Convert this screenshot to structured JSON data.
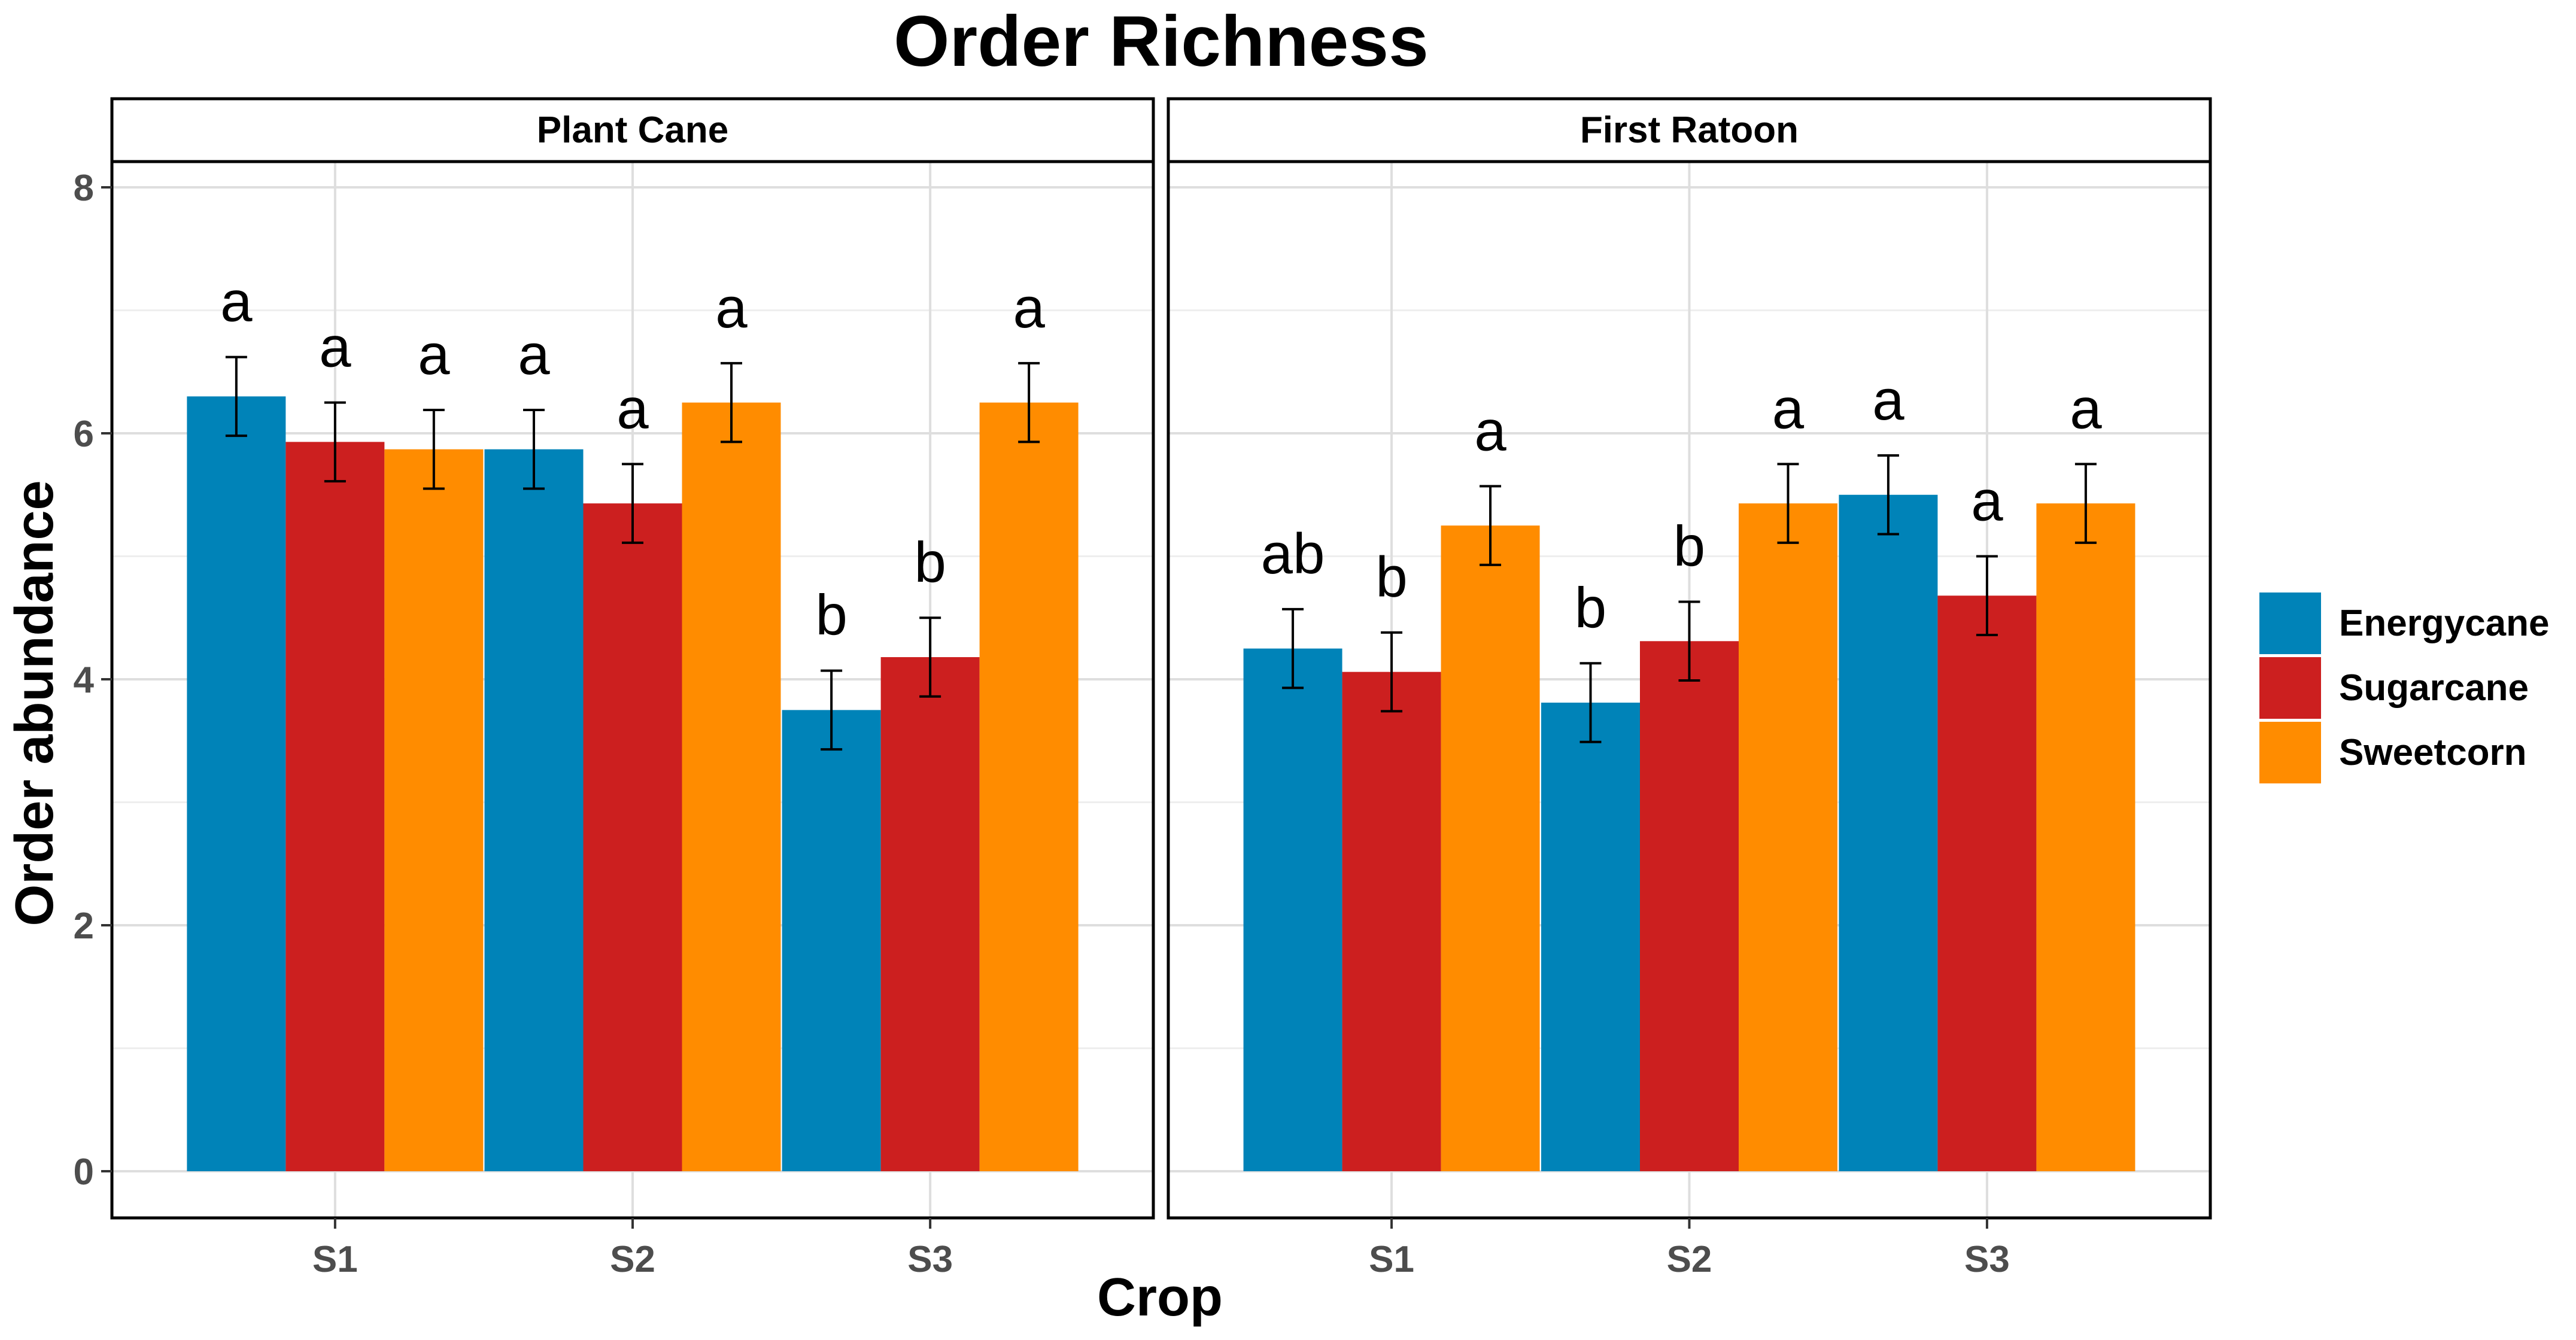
{
  "chart_data": {
    "type": "bar",
    "title": "Order Richness",
    "xlabel": "Crop",
    "ylabel": "Order abundance",
    "ylim": [
      0,
      8
    ],
    "yticks": [
      0,
      2,
      4,
      6,
      8
    ],
    "categories": [
      "S1",
      "S2",
      "S3"
    ],
    "colors": {
      "Energycane": "#0083B8",
      "Sugarcane": "#CC1F1F",
      "Sweetcorn": "#FF8C00"
    },
    "legend": {
      "position": "right",
      "entries": [
        "Energycane",
        "Sugarcane",
        "Sweetcorn"
      ]
    },
    "grid": true,
    "panels": [
      {
        "label": "Plant Cane",
        "series": [
          {
            "name": "Energycane",
            "values": [
              6.3,
              5.87,
              3.75
            ],
            "errors": [
              0.32,
              0.32,
              0.32
            ],
            "letters": [
              "a",
              "a",
              "b"
            ]
          },
          {
            "name": "Sugarcane",
            "values": [
              5.93,
              5.43,
              4.18
            ],
            "errors": [
              0.32,
              0.32,
              0.32
            ],
            "letters": [
              "a",
              "a",
              "b"
            ]
          },
          {
            "name": "Sweetcorn",
            "values": [
              5.87,
              6.25,
              6.25
            ],
            "errors": [
              0.32,
              0.32,
              0.32
            ],
            "letters": [
              "a",
              "a",
              "a"
            ]
          }
        ]
      },
      {
        "label": "First Ratoon",
        "series": [
          {
            "name": "Energycane",
            "values": [
              4.25,
              3.81,
              5.5
            ],
            "errors": [
              0.32,
              0.32,
              0.32
            ],
            "letters": [
              "ab",
              "b",
              "a"
            ]
          },
          {
            "name": "Sugarcane",
            "values": [
              4.06,
              4.31,
              4.68
            ],
            "errors": [
              0.32,
              0.32,
              0.32
            ],
            "letters": [
              "b",
              "b",
              "a"
            ]
          },
          {
            "name": "Sweetcorn",
            "values": [
              5.25,
              5.43,
              5.43
            ],
            "errors": [
              0.32,
              0.32,
              0.32
            ],
            "letters": [
              "a",
              "a",
              "a"
            ]
          }
        ]
      }
    ]
  }
}
